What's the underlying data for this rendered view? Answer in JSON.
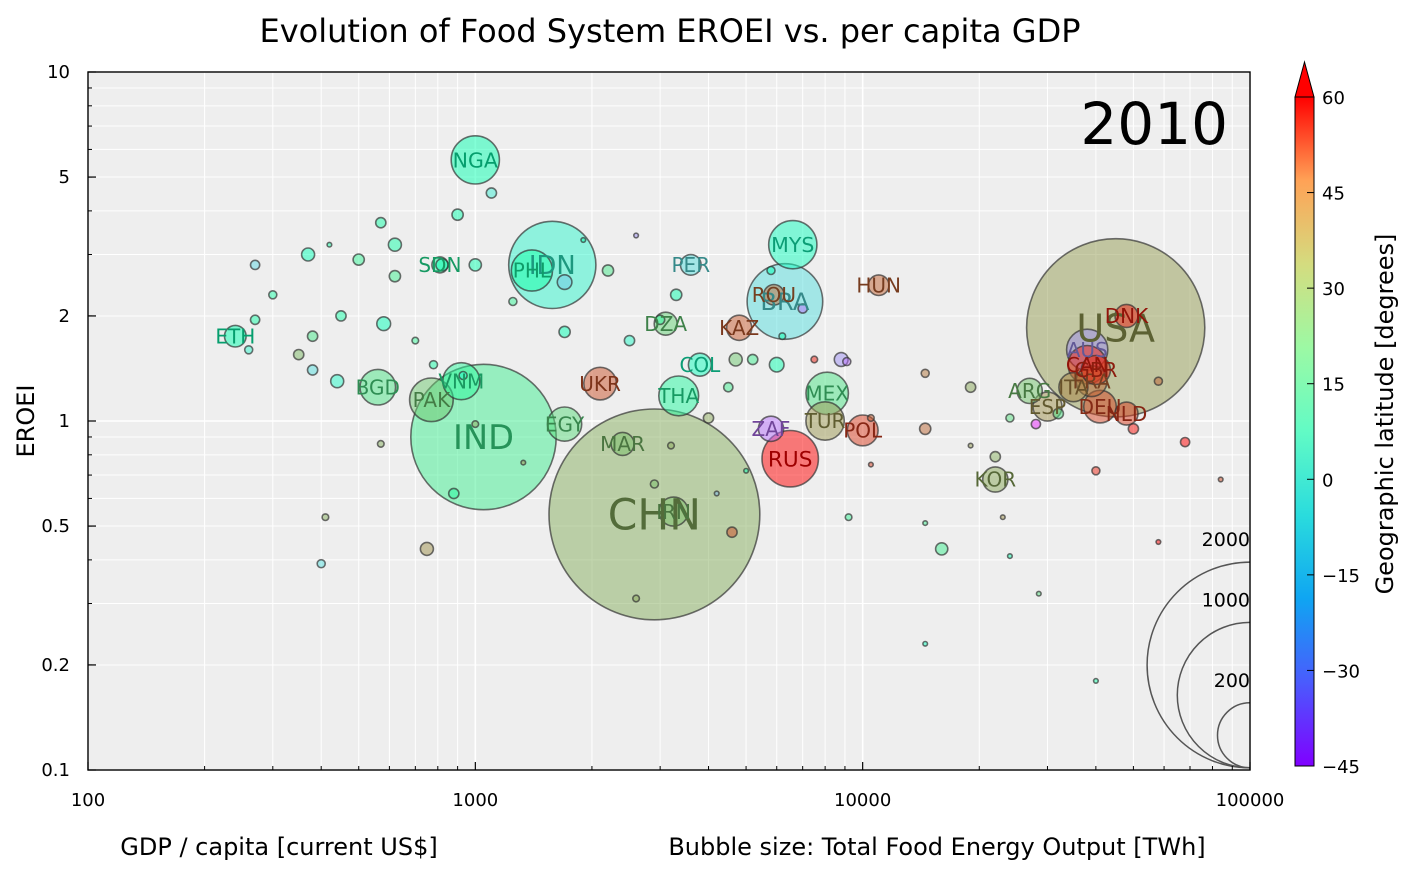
{
  "chart_data": {
    "type": "scatter",
    "title": "Evolution of Food System EROEI vs. per capita GDP",
    "xlabel": "GDP / capita [current US$]",
    "ylabel": "EROEI",
    "size_label": "Bubble size: Total Food Energy Output [TWh]",
    "year_label": "2010",
    "x_scale": "log",
    "y_scale": "log",
    "xlim": [
      100,
      100000
    ],
    "ylim": [
      0.1,
      10
    ],
    "x_ticks": [
      {
        "value": 100,
        "label": "100"
      },
      {
        "value": 1000,
        "label": "1000"
      },
      {
        "value": 10000,
        "label": "10000"
      },
      {
        "value": 100000,
        "label": "100000"
      }
    ],
    "y_ticks": [
      {
        "value": 0.1,
        "label": "0.1"
      },
      {
        "value": 0.2,
        "label": "0.2"
      },
      {
        "value": 0.5,
        "label": "0.5"
      },
      {
        "value": 1,
        "label": "1"
      },
      {
        "value": 2,
        "label": "2"
      },
      {
        "value": 5,
        "label": "5"
      },
      {
        "value": 10,
        "label": "10"
      }
    ],
    "grid": true,
    "colorbar": {
      "label": "Geographic latitude [degrees]",
      "min": -45,
      "max": 60,
      "colormap": "rainbow",
      "extend": "max",
      "ticks": [
        {
          "value": 60,
          "label": "60"
        },
        {
          "value": 45,
          "label": "45"
        },
        {
          "value": 30,
          "label": "30"
        },
        {
          "value": 15,
          "label": "15"
        },
        {
          "value": 0,
          "label": "0"
        },
        {
          "value": -15,
          "label": "−15"
        },
        {
          "value": -30,
          "label": "−30"
        },
        {
          "value": -45,
          "label": "−45"
        }
      ]
    },
    "size_legend": [
      {
        "value": 2000,
        "label": "2000"
      },
      {
        "value": 1000,
        "label": "1000"
      },
      {
        "value": 200,
        "label": "200"
      }
    ],
    "labeled_points": [
      {
        "label": "NGA",
        "x": 1000,
        "y": 5.6,
        "size": 110,
        "lat": 9
      },
      {
        "label": "IDN",
        "x": 1580,
        "y": 2.8,
        "size": 360,
        "lat": -2
      },
      {
        "label": "PHL",
        "x": 1400,
        "y": 2.7,
        "size": 80,
        "lat": 12
      },
      {
        "label": "SDN",
        "x": 810,
        "y": 2.8,
        "size": 12,
        "lat": 15
      },
      {
        "label": "ETH",
        "x": 240,
        "y": 1.75,
        "size": 22,
        "lat": 9
      },
      {
        "label": "BGD",
        "x": 560,
        "y": 1.25,
        "size": 60,
        "lat": 23
      },
      {
        "label": "PAK",
        "x": 770,
        "y": 1.15,
        "size": 90,
        "lat": 30
      },
      {
        "label": "VNM",
        "x": 920,
        "y": 1.3,
        "size": 65,
        "lat": 16
      },
      {
        "label": "IND",
        "x": 1050,
        "y": 0.9,
        "size": 1000,
        "lat": 20
      },
      {
        "label": "EGY",
        "x": 1700,
        "y": 0.98,
        "size": 55,
        "lat": 26
      },
      {
        "label": "UKR",
        "x": 2100,
        "y": 1.28,
        "size": 50,
        "lat": 49
      },
      {
        "label": "MAR",
        "x": 2400,
        "y": 0.86,
        "size": 25,
        "lat": 32
      },
      {
        "label": "THA",
        "x": 3350,
        "y": 1.18,
        "size": 75,
        "lat": 15
      },
      {
        "label": "CHN",
        "x": 2900,
        "y": 0.54,
        "size": 2100,
        "lat": 35
      },
      {
        "label": "IRN",
        "x": 3250,
        "y": 0.55,
        "size": 40,
        "lat": 32
      },
      {
        "label": "PER",
        "x": 3600,
        "y": 2.8,
        "size": 20,
        "lat": -10
      },
      {
        "label": "DZA",
        "x": 3100,
        "y": 1.9,
        "size": 25,
        "lat": 28
      },
      {
        "label": "COL",
        "x": 3800,
        "y": 1.45,
        "size": 25,
        "lat": 4
      },
      {
        "label": "MYS",
        "x": 6600,
        "y": 3.2,
        "size": 110,
        "lat": 4
      },
      {
        "label": "BRA",
        "x": 6300,
        "y": 2.2,
        "size": 270,
        "lat": -10
      },
      {
        "label": "ROU",
        "x": 5900,
        "y": 2.3,
        "size": 20,
        "lat": 46
      },
      {
        "label": "KAZ",
        "x": 4800,
        "y": 1.85,
        "size": 30,
        "lat": 48
      },
      {
        "label": "ZAF",
        "x": 5800,
        "y": 0.95,
        "size": 30,
        "lat": -30
      },
      {
        "label": "RUS",
        "x": 6500,
        "y": 0.78,
        "size": 150,
        "lat": 60
      },
      {
        "label": "MEX",
        "x": 8100,
        "y": 1.2,
        "size": 85,
        "lat": 23
      },
      {
        "label": "TUR",
        "x": 8000,
        "y": 1.0,
        "size": 70,
        "lat": 39
      },
      {
        "label": "POL",
        "x": 10000,
        "y": 0.94,
        "size": 45,
        "lat": 52
      },
      {
        "label": "HUN",
        "x": 11000,
        "y": 2.45,
        "size": 20,
        "lat": 47
      },
      {
        "label": "KOR",
        "x": 22000,
        "y": 0.68,
        "size": 30,
        "lat": 36
      },
      {
        "label": "ARG",
        "x": 27000,
        "y": 1.22,
        "size": 30,
        "lat": 31
      },
      {
        "label": "ESP",
        "x": 30000,
        "y": 1.1,
        "size": 40,
        "lat": 40
      },
      {
        "label": "ITA",
        "x": 35000,
        "y": 1.25,
        "size": 40,
        "lat": 42
      },
      {
        "label": "FRA",
        "x": 39000,
        "y": 1.3,
        "size": 45,
        "lat": 46
      },
      {
        "label": "DEU",
        "x": 41000,
        "y": 1.1,
        "size": 50,
        "lat": 51
      },
      {
        "label": "NLD",
        "x": 48000,
        "y": 1.05,
        "size": 25,
        "lat": 52
      },
      {
        "label": "USA",
        "x": 45000,
        "y": 1.85,
        "size": 1500,
        "lat": 38
      },
      {
        "label": "DNK",
        "x": 48000,
        "y": 2.0,
        "size": 25,
        "lat": 56
      },
      {
        "label": "AUS",
        "x": 38000,
        "y": 1.6,
        "size": 80,
        "lat": -25
      },
      {
        "label": "CAN",
        "x": 38000,
        "y": 1.45,
        "size": 70,
        "lat": 56
      },
      {
        "label": "GBR",
        "x": 40000,
        "y": 1.4,
        "size": 40,
        "lat": 54
      }
    ],
    "points": [
      {
        "x": 1100,
        "y": 4.5,
        "size": 5,
        "lat": -5
      },
      {
        "x": 900,
        "y": 3.9,
        "size": 6,
        "lat": 10
      },
      {
        "x": 570,
        "y": 3.7,
        "size": 5,
        "lat": 12
      },
      {
        "x": 620,
        "y": 3.2,
        "size": 8,
        "lat": 12
      },
      {
        "x": 270,
        "y": 2.8,
        "size": 4,
        "lat": -12
      },
      {
        "x": 370,
        "y": 3.0,
        "size": 8,
        "lat": 6
      },
      {
        "x": 300,
        "y": 2.3,
        "size": 3,
        "lat": 13
      },
      {
        "x": 420,
        "y": 3.2,
        "size": 1,
        "lat": 12
      },
      {
        "x": 500,
        "y": 2.9,
        "size": 6,
        "lat": 18
      },
      {
        "x": 620,
        "y": 2.6,
        "size": 6,
        "lat": 20
      },
      {
        "x": 820,
        "y": 2.8,
        "size": 7,
        "lat": 6
      },
      {
        "x": 1000,
        "y": 2.8,
        "size": 7,
        "lat": 10
      },
      {
        "x": 1250,
        "y": 2.2,
        "size": 3,
        "lat": 18
      },
      {
        "x": 1700,
        "y": 2.5,
        "size": 10,
        "lat": -15
      },
      {
        "x": 2200,
        "y": 2.7,
        "size": 6,
        "lat": 22
      },
      {
        "x": 2600,
        "y": 3.4,
        "size": 1,
        "lat": -25
      },
      {
        "x": 1900,
        "y": 3.3,
        "size": 1,
        "lat": 10
      },
      {
        "x": 3000,
        "y": 1.95,
        "size": 4,
        "lat": 16
      },
      {
        "x": 3300,
        "y": 2.3,
        "size": 6,
        "lat": 10
      },
      {
        "x": 2500,
        "y": 1.7,
        "size": 5,
        "lat": 0
      },
      {
        "x": 1700,
        "y": 1.8,
        "size": 6,
        "lat": 8
      },
      {
        "x": 580,
        "y": 1.9,
        "size": 9,
        "lat": 6
      },
      {
        "x": 450,
        "y": 2.0,
        "size": 5,
        "lat": 12
      },
      {
        "x": 380,
        "y": 1.75,
        "size": 5,
        "lat": 22
      },
      {
        "x": 270,
        "y": 1.95,
        "size": 4,
        "lat": 12
      },
      {
        "x": 260,
        "y": 1.6,
        "size": 3,
        "lat": -2
      },
      {
        "x": 350,
        "y": 1.55,
        "size": 5,
        "lat": 33
      },
      {
        "x": 380,
        "y": 1.4,
        "size": 5,
        "lat": -10
      },
      {
        "x": 440,
        "y": 1.3,
        "size": 8,
        "lat": 0
      },
      {
        "x": 780,
        "y": 1.45,
        "size": 3,
        "lat": 12
      },
      {
        "x": 930,
        "y": 1.35,
        "size": 3,
        "lat": -2
      },
      {
        "x": 700,
        "y": 1.7,
        "size": 2,
        "lat": 18
      },
      {
        "x": 880,
        "y": 0.62,
        "size": 5,
        "lat": 15
      },
      {
        "x": 750,
        "y": 0.43,
        "size": 8,
        "lat": 40
      },
      {
        "x": 400,
        "y": 0.39,
        "size": 3,
        "lat": -10
      },
      {
        "x": 410,
        "y": 0.53,
        "size": 2,
        "lat": 35
      },
      {
        "x": 570,
        "y": 0.86,
        "size": 2,
        "lat": 35
      },
      {
        "x": 1000,
        "y": 0.98,
        "size": 2,
        "lat": 36
      },
      {
        "x": 1330,
        "y": 0.76,
        "size": 1,
        "lat": 40
      },
      {
        "x": 2600,
        "y": 0.31,
        "size": 2,
        "lat": 36
      },
      {
        "x": 2900,
        "y": 0.66,
        "size": 3,
        "lat": 32
      },
      {
        "x": 3200,
        "y": 0.85,
        "size": 2,
        "lat": 36
      },
      {
        "x": 4000,
        "y": 1.02,
        "size": 5,
        "lat": 36
      },
      {
        "x": 4500,
        "y": 1.25,
        "size": 4,
        "lat": 20
      },
      {
        "x": 4700,
        "y": 1.5,
        "size": 8,
        "lat": 30
      },
      {
        "x": 5200,
        "y": 1.5,
        "size": 5,
        "lat": 20
      },
      {
        "x": 6000,
        "y": 1.45,
        "size": 10,
        "lat": 10
      },
      {
        "x": 4600,
        "y": 0.48,
        "size": 5,
        "lat": 50
      },
      {
        "x": 4200,
        "y": 0.62,
        "size": 1,
        "lat": -18
      },
      {
        "x": 5000,
        "y": 0.72,
        "size": 1,
        "lat": 10
      },
      {
        "x": 5800,
        "y": 2.7,
        "size": 3,
        "lat": 8
      },
      {
        "x": 6200,
        "y": 1.75,
        "size": 2,
        "lat": 10
      },
      {
        "x": 7000,
        "y": 2.1,
        "size": 4,
        "lat": -30
      },
      {
        "x": 8800,
        "y": 1.5,
        "size": 9,
        "lat": -25
      },
      {
        "x": 9100,
        "y": 1.48,
        "size": 3,
        "lat": -30
      },
      {
        "x": 7500,
        "y": 1.5,
        "size": 2,
        "lat": 56
      },
      {
        "x": 10500,
        "y": 1.02,
        "size": 2,
        "lat": 48
      },
      {
        "x": 10500,
        "y": 0.75,
        "size": 1,
        "lat": 52
      },
      {
        "x": 9200,
        "y": 0.53,
        "size": 2,
        "lat": 18
      },
      {
        "x": 14500,
        "y": 1.37,
        "size": 3,
        "lat": 44
      },
      {
        "x": 14500,
        "y": 0.95,
        "size": 6,
        "lat": 46
      },
      {
        "x": 16000,
        "y": 0.43,
        "size": 7,
        "lat": 20
      },
      {
        "x": 19000,
        "y": 1.25,
        "size": 5,
        "lat": 36
      },
      {
        "x": 19000,
        "y": 0.85,
        "size": 1,
        "lat": 38
      },
      {
        "x": 22000,
        "y": 0.79,
        "size": 5,
        "lat": 35
      },
      {
        "x": 24000,
        "y": 1.02,
        "size": 3,
        "lat": 25
      },
      {
        "x": 28000,
        "y": 0.98,
        "size": 4,
        "lat": -40
      },
      {
        "x": 32000,
        "y": 1.05,
        "size": 5,
        "lat": 23
      },
      {
        "x": 40000,
        "y": 0.72,
        "size": 3,
        "lat": 55
      },
      {
        "x": 50000,
        "y": 0.95,
        "size": 5,
        "lat": 58
      },
      {
        "x": 58000,
        "y": 1.3,
        "size": 3,
        "lat": 47
      },
      {
        "x": 68000,
        "y": 0.87,
        "size": 4,
        "lat": 60
      },
      {
        "x": 58000,
        "y": 0.45,
        "size": 1,
        "lat": 60
      },
      {
        "x": 84000,
        "y": 0.68,
        "size": 1,
        "lat": 50
      },
      {
        "x": 28500,
        "y": 0.32,
        "size": 1,
        "lat": 25
      },
      {
        "x": 24000,
        "y": 0.41,
        "size": 1,
        "lat": 10
      },
      {
        "x": 23000,
        "y": 0.53,
        "size": 1,
        "lat": 40
      },
      {
        "x": 14500,
        "y": 0.23,
        "size": 1,
        "lat": 5
      },
      {
        "x": 40000,
        "y": 0.18,
        "size": 1,
        "lat": 12
      },
      {
        "x": 14500,
        "y": 0.51,
        "size": 1,
        "lat": 20
      }
    ]
  }
}
